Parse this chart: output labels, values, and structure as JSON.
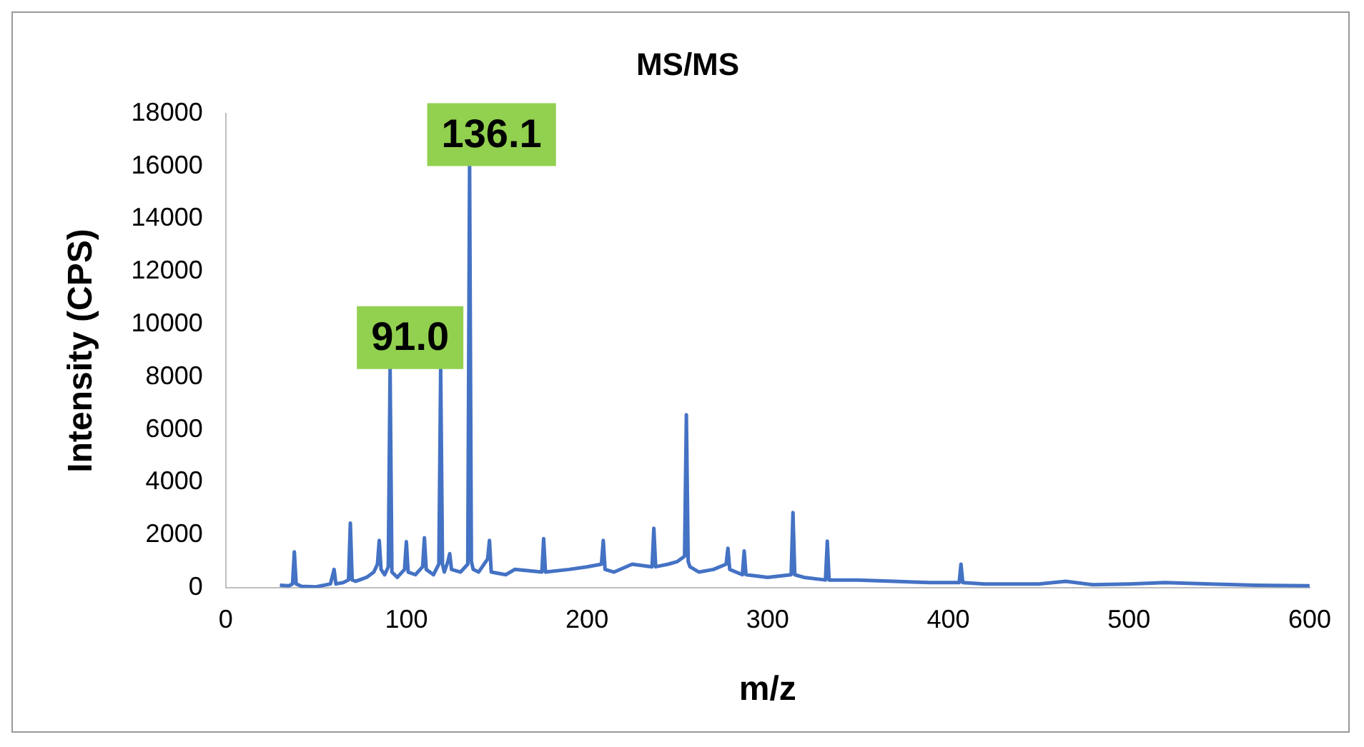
{
  "chart_data": {
    "type": "line",
    "title": "MS/MS",
    "xlabel": "m/z",
    "ylabel": "Intensity (CPS)",
    "x": [
      30,
      35,
      37,
      38,
      39,
      42,
      50,
      58,
      60,
      61,
      65,
      68,
      69,
      70,
      72,
      78,
      82,
      84,
      85,
      86,
      88,
      90,
      91,
      92,
      95,
      99,
      100,
      101,
      105,
      109,
      110,
      111,
      115,
      118,
      119,
      120,
      121,
      123,
      124,
      125,
      130,
      134,
      135,
      136,
      137,
      140,
      145,
      146,
      147,
      155,
      160,
      175,
      176,
      177,
      190,
      200,
      208,
      209,
      210,
      215,
      225,
      236,
      237,
      238,
      245,
      250,
      254,
      255,
      256,
      257,
      262,
      270,
      277,
      278,
      279,
      286,
      287,
      288,
      300,
      313,
      314,
      315,
      320,
      332,
      333,
      334,
      350,
      370,
      390,
      406,
      407,
      408,
      420,
      450,
      465,
      480,
      500,
      520,
      545,
      570,
      600
    ],
    "series": [
      {
        "color": "#4472c4",
        "values": [
          100,
          80,
          150,
          1370,
          150,
          60,
          40,
          150,
          700,
          150,
          200,
          300,
          2460,
          300,
          250,
          400,
          600,
          900,
          1800,
          700,
          500,
          800,
          8300,
          600,
          400,
          700,
          1750,
          600,
          500,
          800,
          1900,
          700,
          500,
          900,
          8300,
          900,
          600,
          1000,
          1300,
          700,
          600,
          900,
          16000,
          1000,
          700,
          600,
          1100,
          1800,
          600,
          500,
          700,
          600,
          1870,
          600,
          700,
          800,
          900,
          1800,
          700,
          600,
          900,
          800,
          2260,
          800,
          900,
          1000,
          1200,
          6570,
          1000,
          800,
          600,
          700,
          900,
          1500,
          700,
          500,
          1400,
          500,
          400,
          500,
          2860,
          500,
          400,
          300,
          1770,
          300,
          300,
          250,
          200,
          200,
          900,
          200,
          150,
          150,
          250,
          120,
          150,
          200,
          150,
          100,
          80
        ]
      }
    ],
    "xlim": [
      0,
      600
    ],
    "xticks": [
      0,
      100,
      200,
      300,
      400,
      500,
      600
    ],
    "ylim": [
      0,
      18000
    ],
    "yticks": [
      0,
      2000,
      4000,
      6000,
      8000,
      10000,
      12000,
      14000,
      16000,
      18000
    ],
    "grid": false,
    "legend": false,
    "marker": "none",
    "line_style": "solid",
    "annotations": [
      {
        "text": "91.0",
        "x": 91,
        "y": 8300
      },
      {
        "text": "136.1",
        "x": 136.1,
        "y": 16000
      }
    ]
  }
}
